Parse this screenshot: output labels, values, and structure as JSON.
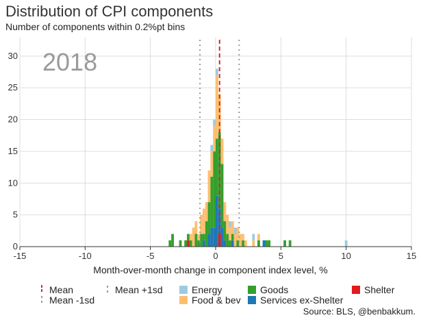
{
  "title": "Distribution of CPI components",
  "subtitle": "Number of components within 0.2%pt bins",
  "year": "2018",
  "source": "Source: BLS, @benbakkum.",
  "chart_data": {
    "type": "bar",
    "stacked": true,
    "xlabel": "Month-over-month change in component index level, %",
    "ylabel": "",
    "xlim": [
      -15,
      15
    ],
    "ylim": [
      0,
      33
    ],
    "xticks": [
      -15,
      -10,
      -5,
      0,
      5,
      10,
      15
    ],
    "yticks": [
      0,
      5,
      10,
      15,
      20,
      25,
      30
    ],
    "bin_width": 0.2,
    "grid": true,
    "mean": 0.3,
    "mean_minus_1sd": -1.2,
    "mean_plus_1sd": 1.8,
    "stack_order": [
      "Shelter",
      "Services ex-Shelter",
      "Goods",
      "Food & bev",
      "Energy"
    ],
    "series": [
      {
        "name": "Energy",
        "color": "#9ecae1",
        "bins": [
          [
            -0.3,
            1
          ],
          [
            -0.1,
            1
          ],
          [
            0.1,
            1
          ],
          [
            1.1,
            1
          ],
          [
            1.5,
            1
          ],
          [
            2.9,
            1
          ],
          [
            10.0,
            1
          ]
        ]
      },
      {
        "name": "Food & bev",
        "color": "#fdbf6f",
        "bins": [
          [
            -1.9,
            1
          ],
          [
            -1.7,
            3
          ],
          [
            -1.5,
            2
          ],
          [
            -1.3,
            1
          ],
          [
            -1.1,
            3
          ],
          [
            -0.9,
            4
          ],
          [
            -0.7,
            3
          ],
          [
            -0.5,
            5
          ],
          [
            -0.3,
            4
          ],
          [
            -0.1,
            4
          ],
          [
            0.1,
            10
          ],
          [
            0.3,
            6
          ],
          [
            0.5,
            4
          ],
          [
            0.7,
            3
          ],
          [
            0.9,
            3
          ],
          [
            1.1,
            2
          ],
          [
            1.3,
            2
          ],
          [
            1.5,
            2
          ],
          [
            1.7,
            2
          ],
          [
            1.9,
            2
          ],
          [
            2.1,
            1
          ],
          [
            2.3,
            1
          ],
          [
            2.9,
            1
          ],
          [
            3.3,
            1
          ]
        ]
      },
      {
        "name": "Goods",
        "color": "#33a02c",
        "bins": [
          [
            -3.5,
            1
          ],
          [
            -3.3,
            2
          ],
          [
            -2.7,
            1
          ],
          [
            -2.3,
            1
          ],
          [
            -2.1,
            1
          ],
          [
            -1.9,
            1
          ],
          [
            -1.5,
            2
          ],
          [
            -1.3,
            1
          ],
          [
            -1.1,
            2
          ],
          [
            -0.9,
            1
          ],
          [
            -0.7,
            4
          ],
          [
            -0.5,
            5
          ],
          [
            -0.3,
            8
          ],
          [
            -0.1,
            12
          ],
          [
            0.1,
            9
          ],
          [
            0.3,
            12
          ],
          [
            0.5,
            10
          ],
          [
            0.7,
            3
          ],
          [
            0.9,
            2
          ],
          [
            1.1,
            1
          ],
          [
            1.3,
            1
          ],
          [
            1.7,
            1
          ],
          [
            2.1,
            1
          ],
          [
            3.3,
            1
          ],
          [
            3.9,
            1
          ],
          [
            4.1,
            1
          ],
          [
            5.3,
            1
          ],
          [
            5.7,
            1
          ]
        ]
      },
      {
        "name": "Services ex-Shelter",
        "color": "#1f78b4",
        "bins": [
          [
            -0.9,
            1
          ],
          [
            -0.5,
            2
          ],
          [
            -0.3,
            3
          ],
          [
            -0.1,
            3
          ],
          [
            0.1,
            8
          ],
          [
            0.3,
            4
          ],
          [
            0.5,
            3
          ],
          [
            0.7,
            1
          ],
          [
            1.3,
            1
          ],
          [
            3.7,
            1
          ]
        ]
      },
      {
        "name": "Shelter",
        "color": "#e31a1c",
        "bins": [
          [
            -2.1,
            1
          ],
          [
            0.3,
            2
          ]
        ]
      }
    ]
  },
  "legend": {
    "mean": "Mean",
    "mean_plus_1sd": "Mean +1sd",
    "mean_minus_1sd": "Mean -1sd",
    "energy": "Energy",
    "goods": "Goods",
    "shelter": "Shelter",
    "food_bev": "Food & bev",
    "services": "Services ex-Shelter"
  },
  "colors": {
    "mean_line": "#d62728",
    "sd_line": "#999999",
    "grid": "#dddddd",
    "year_label": "#9a9a9a"
  }
}
